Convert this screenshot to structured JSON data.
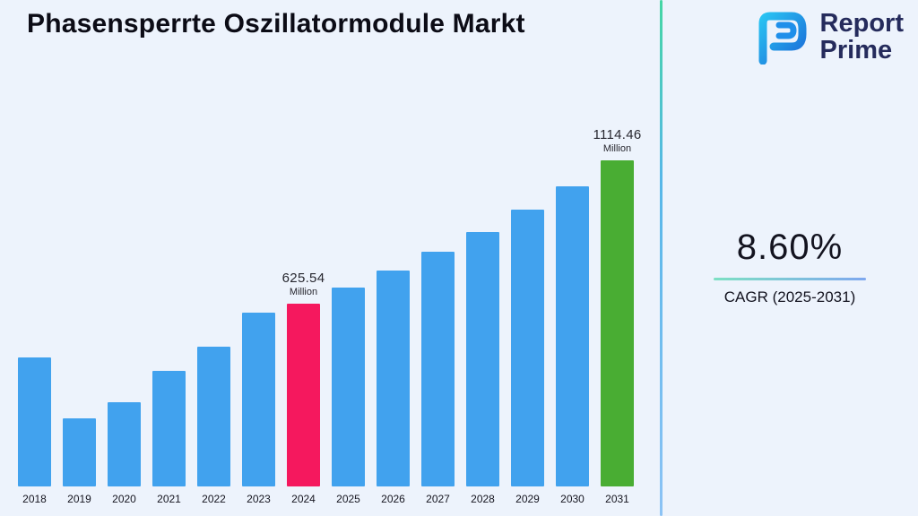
{
  "page": {
    "title": "Phasensperrte Oszillatormodule Markt",
    "background_color": "#EDF3FC"
  },
  "logo": {
    "line1": "Report",
    "line2": "Prime",
    "text_color": "#252B5C"
  },
  "stats": {
    "cagr_value": "8.60%",
    "cagr_label": "CAGR (2025-2031)"
  },
  "chart_data": {
    "type": "bar",
    "title": "Phasensperrte Oszillatormodule Markt",
    "unit": "Million",
    "categories": [
      "2018",
      "2019",
      "2020",
      "2021",
      "2022",
      "2023",
      "2024",
      "2025",
      "2026",
      "2027",
      "2028",
      "2029",
      "2030",
      "2031"
    ],
    "values": [
      441,
      233,
      287,
      395,
      477,
      593,
      625.54,
      679.33,
      737.76,
      801.21,
      870.11,
      944.94,
      1026.2,
      1114.46
    ],
    "annotations": [
      {
        "category": "2024",
        "value": "625.54",
        "unit": "Million"
      },
      {
        "category": "2031",
        "value": "1114.46",
        "unit": "Million"
      }
    ],
    "bar_color_default": "#41A2EE",
    "bar_highlight_colors": {
      "2024": "#F5185E",
      "2031": "#49AD33"
    },
    "ylim": [
      0,
      1150
    ],
    "grid": false,
    "legend": false,
    "xlabel": "",
    "ylabel": ""
  }
}
